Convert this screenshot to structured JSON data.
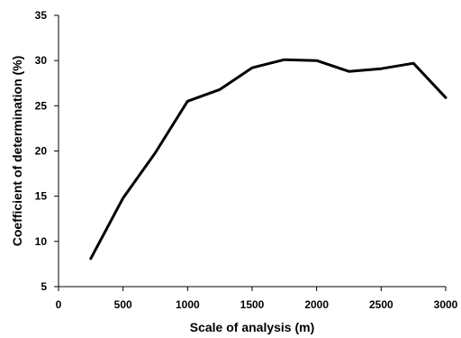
{
  "chart_data": {
    "type": "line",
    "title": "",
    "xlabel": "Scale of analysis (m)",
    "ylabel": "Coefficient of determination (%)",
    "xlim": [
      0,
      3000
    ],
    "ylim": [
      5,
      35
    ],
    "xticks": [
      0,
      500,
      1000,
      1500,
      2000,
      2500,
      3000
    ],
    "yticks": [
      5,
      10,
      15,
      20,
      25,
      30,
      35
    ],
    "grid": false,
    "legend": "none",
    "series": [
      {
        "color": "#000000",
        "x": [
          250,
          500,
          750,
          1000,
          1250,
          1500,
          1750,
          2000,
          2250,
          2500,
          2750,
          3000
        ],
        "y": [
          8.1,
          14.8,
          19.8,
          25.5,
          26.8,
          29.2,
          30.1,
          30.0,
          28.8,
          29.1,
          29.7,
          25.9
        ]
      }
    ]
  }
}
